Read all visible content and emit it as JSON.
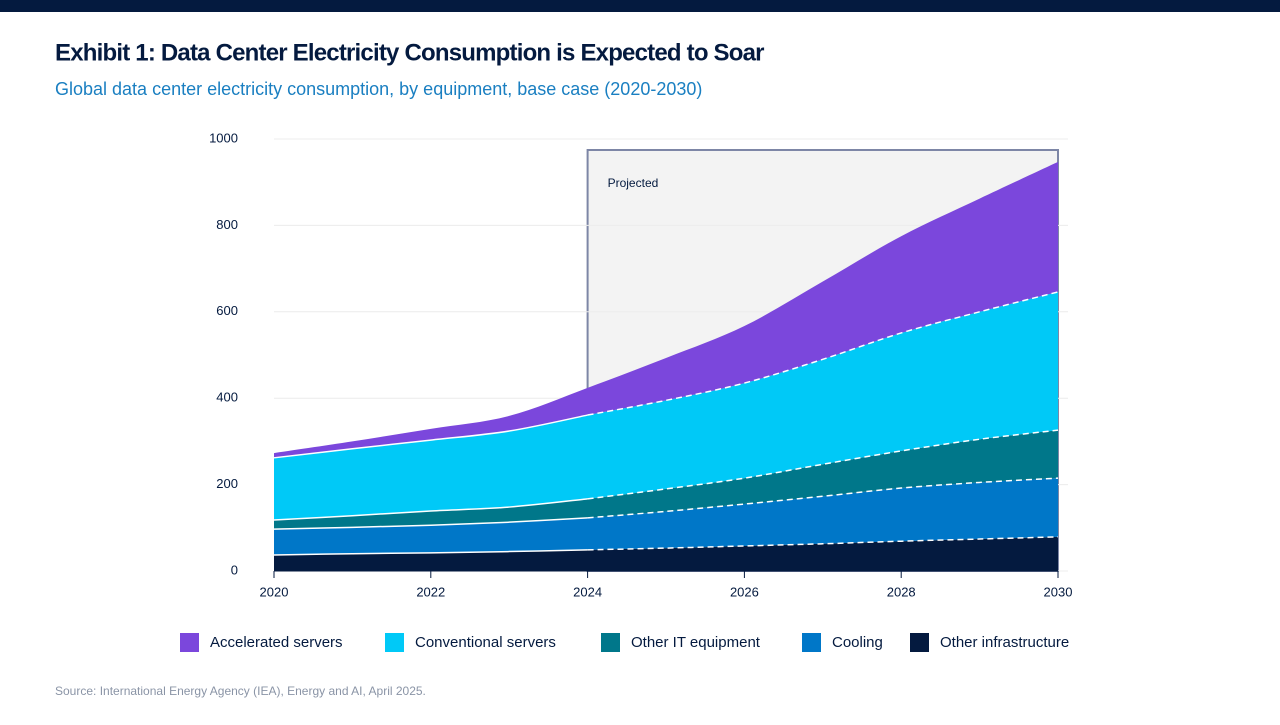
{
  "chart_data": {
    "type": "stacked-area",
    "title": "Exhibit 1: Data Center Electricity Consumption is Expected to Soar",
    "subtitle": "Global data center electricity consumption, by equipment, base case (2020-2030)",
    "source": "Source: International Energy Agency (IEA), Energy and AI, April 2025.",
    "annotation": {
      "text": "Projected",
      "x_range": [
        2024,
        2030
      ]
    },
    "x": [
      2020,
      2021,
      2022,
      2023,
      2024,
      2025,
      2026,
      2027,
      2028,
      2029,
      2030
    ],
    "xlim": [
      2020,
      2030
    ],
    "xticks": [
      2020,
      2022,
      2024,
      2026,
      2028,
      2030
    ],
    "ylim": [
      0,
      1000
    ],
    "yticks": [
      0,
      200,
      400,
      600,
      800,
      1000
    ],
    "grid": true,
    "series": [
      {
        "name": "Accelerated servers",
        "color": "#7b47dc",
        "values": [
          11,
          17,
          26,
          35,
          63,
          98,
          132,
          180,
          224,
          262,
          301
        ]
      },
      {
        "name": "Conventional servers",
        "color": "#00c9f7",
        "values": [
          144,
          155,
          164,
          176,
          194,
          205,
          220,
          243,
          273,
          295,
          320
        ]
      },
      {
        "name": "Other IT equipment",
        "color": "#00778a",
        "values": [
          21,
          27,
          33,
          35,
          44,
          52,
          60,
          74,
          86,
          100,
          111
        ]
      },
      {
        "name": "Cooling",
        "color": "#0077c8",
        "values": [
          60,
          61,
          64,
          68,
          74,
          85,
          97,
          110,
          123,
          131,
          136
        ]
      },
      {
        "name": "Other infrastructure",
        "color": "#041a3f",
        "values": [
          37,
          40,
          42,
          45,
          49,
          53,
          58,
          63,
          69,
          74,
          79
        ]
      }
    ]
  }
}
